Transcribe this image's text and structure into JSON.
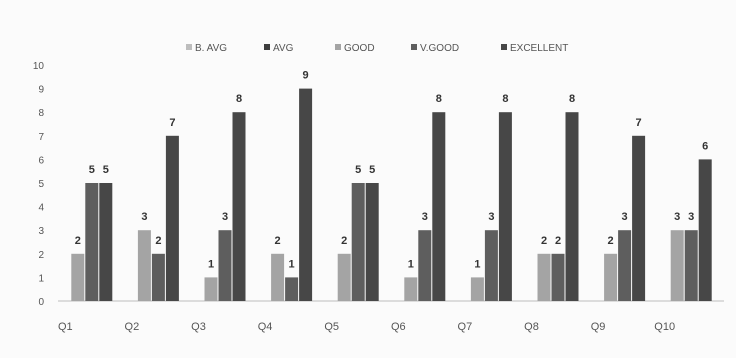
{
  "chart_data": {
    "type": "bar",
    "categories": [
      "Q1",
      "Q2",
      "Q3",
      "Q4",
      "Q5",
      "Q6",
      "Q7",
      "Q8",
      "Q9",
      "Q10"
    ],
    "series": [
      {
        "name": "B. AVG",
        "color": "#bdbdbd",
        "values": [
          0,
          0,
          0,
          0,
          0,
          0,
          0,
          0,
          0,
          0
        ],
        "labels": [
          "",
          "",
          "",
          "",
          "",
          "",
          "",
          "",
          "",
          ""
        ]
      },
      {
        "name": "AVG",
        "color": "#3d3d3d",
        "values": [
          0,
          0,
          0,
          0,
          0,
          0,
          0,
          0,
          0,
          0
        ],
        "labels": [
          "",
          "",
          "",
          "",
          "",
          "",
          "",
          "",
          "",
          ""
        ]
      },
      {
        "name": "GOOD",
        "color": "#a4a4a4",
        "values": [
          2,
          3,
          1,
          2,
          2,
          1,
          1,
          2,
          2,
          3
        ],
        "labels": [
          "2",
          "3",
          "1",
          "2",
          "2",
          "1",
          "1",
          "2",
          "2",
          "3"
        ]
      },
      {
        "name": "V.GOOD",
        "color": "#5e5e5e",
        "values": [
          5,
          2,
          3,
          1,
          5,
          3,
          3,
          2,
          3,
          3
        ],
        "labels": [
          "5",
          "2",
          "3",
          "1",
          "5",
          "3",
          "3",
          "2",
          "3",
          "3"
        ]
      },
      {
        "name": "EXCELLENT",
        "color": "#474747",
        "values": [
          5,
          7,
          8,
          9,
          5,
          8,
          8,
          8,
          7,
          6
        ],
        "labels": [
          "5",
          "7",
          "8",
          "9",
          "5",
          "8",
          "8",
          "8",
          "7",
          "6"
        ]
      }
    ],
    "ylim": [
      0,
      10
    ],
    "yticks": [
      "0",
      "1",
      "2",
      "3",
      "4",
      "5",
      "6",
      "7",
      "8",
      "9",
      "10"
    ],
    "grid": false,
    "legend_position": "top-center"
  }
}
